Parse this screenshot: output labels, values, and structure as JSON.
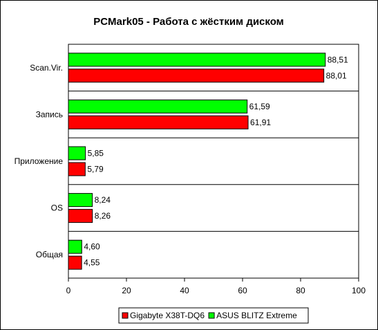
{
  "chart_data": {
    "type": "bar",
    "orientation": "horizontal",
    "title": "PCMark05 - Работа с жёстким диском",
    "categories": [
      "Scan.Vir.",
      "Запись",
      "Приложение",
      "OS",
      "Общая"
    ],
    "series": [
      {
        "name": "ASUS BLITZ Extreme",
        "color": "#00ff00",
        "values": [
          88.51,
          61.59,
          5.85,
          8.24,
          4.6
        ],
        "labels": [
          "88,51",
          "61,59",
          "5,85",
          "8,24",
          "4,60"
        ]
      },
      {
        "name": "Gigabyte X38T-DQ6",
        "color": "#ff0000",
        "values": [
          88.01,
          61.91,
          5.79,
          8.26,
          4.55
        ],
        "labels": [
          "88,01",
          "61,91",
          "5,79",
          "8,26",
          "4,55"
        ]
      }
    ],
    "xlim": [
      0,
      100
    ],
    "xticks": [
      "0",
      "20",
      "40",
      "60",
      "80",
      "100"
    ],
    "grid": "horizontal separators between categories",
    "legend": {
      "position": "bottom",
      "items": [
        {
          "label": "Gigabyte X38T-DQ6",
          "color": "#ff0000"
        },
        {
          "label": "ASUS BLITZ Extreme",
          "color": "#00ff00"
        }
      ]
    }
  }
}
